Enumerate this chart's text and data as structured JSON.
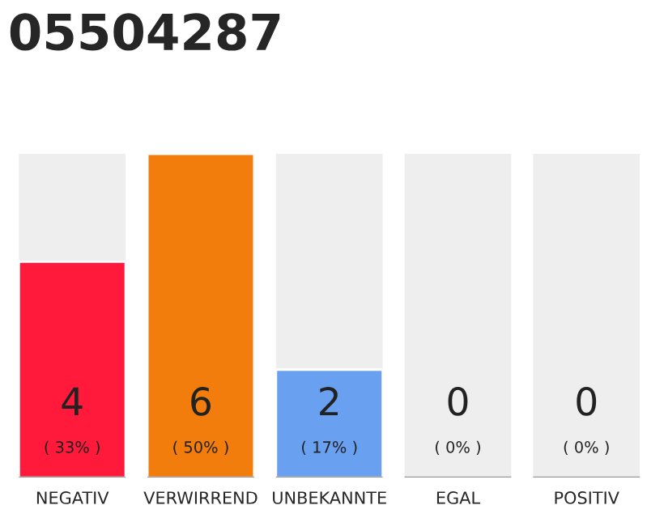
{
  "chart_data": {
    "type": "bar",
    "title": "05504287",
    "categories": [
      "NEGATIV",
      "VERWIRREND",
      "UNBEKANNTE",
      "EGAL",
      "POSITIV"
    ],
    "values": [
      4,
      6,
      2,
      0,
      0
    ],
    "colors": [
      "#ff1a3c",
      "#f27d0c",
      "#6aa0f0",
      null,
      null
    ],
    "value_labels": [
      "4\n( 33% )",
      "6\n( 50% )",
      "2\n( 17% )",
      "0\n( 0% )",
      "0\n( 0% )"
    ],
    "grid": false,
    "legend": false
  }
}
